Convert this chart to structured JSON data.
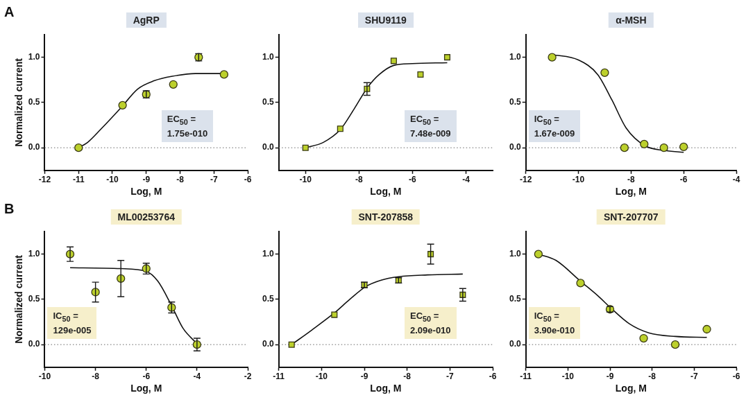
{
  "chart_data": [
    {
      "type": "scatter",
      "title": "AgRP",
      "xlabel": "Log, M",
      "ylabel": "Normalized current",
      "xlim": [
        -12,
        -6
      ],
      "xticks": [
        -12,
        -11,
        -10,
        -9,
        -8,
        -7,
        -6
      ],
      "ylim": [
        -0.25,
        1.25
      ],
      "yticks": [
        {
          "value": 0,
          "label": "0.0"
        },
        {
          "value": 0.5,
          "label": "0.5"
        },
        {
          "value": 1,
          "label": "1.0"
        }
      ],
      "grid": false,
      "legend": false,
      "annotations": [
        "A",
        "EC$_{50}$ = 1.75e-010"
      ],
      "ref_lines": [
        {
          "axis": "y",
          "value": 0,
          "color": "#666666",
          "line_style": "dotted"
        }
      ],
      "series": [
        {
          "type": "scatter",
          "color": "#bcd02c",
          "marker": "circle",
          "x": [
            -11,
            -9.7,
            -9,
            -8.2,
            -7.45,
            -6.7
          ],
          "values": [
            0,
            0.47,
            0.59,
            0.7,
            1.0,
            0.81
          ],
          "errors": [
            null,
            null,
            0.04,
            null,
            0.04,
            null
          ]
        },
        {
          "type": "line",
          "color": "#111111",
          "marker": "none",
          "x": [
            -11,
            -10.73,
            -10.33,
            -9.73,
            -9.25,
            -8.77,
            -8.23,
            -7.55,
            -6.7
          ],
          "values": [
            0,
            0.06,
            0.21,
            0.45,
            0.65,
            0.74,
            0.79,
            0.82,
            0.82
          ]
        }
      ]
    },
    {
      "type": "scatter",
      "title": "SHU9119",
      "xlabel": "Log, M",
      "xlim": [
        -11,
        -3
      ],
      "xticks": [
        -10,
        -8,
        -6,
        -4
      ],
      "ylim": [
        -0.25,
        1.25
      ],
      "yticks": [
        {
          "value": 0,
          "label": "0.0"
        },
        {
          "value": 0.5,
          "label": "0.5"
        },
        {
          "value": 1,
          "label": "1.0"
        }
      ],
      "grid": false,
      "legend": false,
      "annotations": [
        "EC$_{50}$ = 7.48e-009"
      ],
      "ref_lines": [
        {
          "axis": "y",
          "value": 0,
          "color": "#666666",
          "line_style": "dotted"
        }
      ],
      "series": [
        {
          "type": "scatter",
          "color": "#bcd02c",
          "marker": "square",
          "x": [
            -10,
            -8.7,
            -7.7,
            -6.7,
            -5.7,
            -4.7
          ],
          "values": [
            0,
            0.21,
            0.65,
            0.96,
            0.81,
            1.0
          ],
          "errors": [
            null,
            null,
            0.07,
            null,
            null,
            null
          ]
        },
        {
          "type": "line",
          "color": "#111111",
          "marker": "none",
          "x": [
            -10,
            -9.33,
            -8.7,
            -8.2,
            -7.67,
            -7.24,
            -6.7,
            -6.0,
            -4.7
          ],
          "values": [
            0,
            0.06,
            0.2,
            0.42,
            0.67,
            0.81,
            0.91,
            0.93,
            0.94
          ]
        }
      ]
    },
    {
      "type": "scatter",
      "title": "α-MSH",
      "xlabel": "Log, M",
      "xlim": [
        -12,
        -4
      ],
      "xticks": [
        -12,
        -10,
        -8,
        -6,
        -4
      ],
      "ylim": [
        -0.25,
        1.25
      ],
      "yticks": [
        {
          "value": 0,
          "label": "0.0"
        },
        {
          "value": 0.5,
          "label": "0.5"
        },
        {
          "value": 1,
          "label": "1.0"
        }
      ],
      "grid": false,
      "legend": false,
      "annotations": [
        "IC$_{50}$ = 1.67e-009"
      ],
      "ref_lines": [
        {
          "axis": "y",
          "value": 0,
          "color": "#666666",
          "line_style": "dotted"
        }
      ],
      "series": [
        {
          "type": "scatter",
          "color": "#bcd02c",
          "marker": "circle",
          "x": [
            -11,
            -9,
            -8.25,
            -7.5,
            -6.75,
            -6
          ],
          "values": [
            1.0,
            0.83,
            0,
            0.04,
            0,
            0.01
          ]
        },
        {
          "type": "line",
          "color": "#111111",
          "marker": "none",
          "x": [
            -11,
            -10,
            -9.27,
            -8.73,
            -8.19,
            -7.46,
            -6.74,
            -6
          ],
          "values": [
            1.03,
            0.97,
            0.81,
            0.53,
            0.22,
            0.02,
            -0.03,
            -0.05
          ]
        }
      ]
    },
    {
      "type": "scatter",
      "title": "ML00253764",
      "xlabel": "Log, M",
      "ylabel": "Normalized current",
      "xlim": [
        -10,
        -2
      ],
      "xticks": [
        -10,
        -8,
        -6,
        -4,
        -2
      ],
      "ylim": [
        -0.25,
        1.25
      ],
      "yticks": [
        {
          "value": 0,
          "label": "0.0"
        },
        {
          "value": 0.5,
          "label": "0.5"
        },
        {
          "value": 1,
          "label": "1.0"
        }
      ],
      "grid": false,
      "legend": false,
      "annotations": [
        "B",
        "IC$_{50}$ = 129e-005"
      ],
      "ref_lines": [
        {
          "axis": "y",
          "value": 0,
          "color": "#666666",
          "line_style": "dotted"
        }
      ],
      "series": [
        {
          "type": "scatter",
          "color": "#bcd02c",
          "marker": "circle",
          "x": [
            -9,
            -8,
            -7,
            -6,
            -5,
            -4
          ],
          "values": [
            1.0,
            0.58,
            0.73,
            0.84,
            0.41,
            0
          ],
          "errors": [
            0.08,
            0.11,
            0.2,
            0.06,
            0.06,
            0.07
          ]
        },
        {
          "type": "line",
          "color": "#111111",
          "marker": "none",
          "x": [
            -9,
            -7,
            -6,
            -5.54,
            -5,
            -4.55,
            -4
          ],
          "values": [
            0.85,
            0.84,
            0.81,
            0.7,
            0.43,
            0.18,
            0.01
          ]
        }
      ]
    },
    {
      "type": "scatter",
      "title": "SNT-207858",
      "xlabel": "Log, M",
      "xlim": [
        -11,
        -6
      ],
      "xticks": [
        -11,
        -10,
        -9,
        -8,
        -7,
        -6
      ],
      "ylim": [
        -0.25,
        1.25
      ],
      "yticks": [
        {
          "value": 0,
          "label": "0.0"
        },
        {
          "value": 0.5,
          "label": "0.5"
        },
        {
          "value": 1,
          "label": "1.0"
        }
      ],
      "grid": false,
      "legend": false,
      "annotations": [
        "EC$_{50}$ = 2.09e-010"
      ],
      "ref_lines": [
        {
          "axis": "y",
          "value": 0,
          "color": "#666666",
          "line_style": "dotted"
        }
      ],
      "series": [
        {
          "type": "scatter",
          "color": "#bcd02c",
          "marker": "square",
          "x": [
            -10.7,
            -9.7,
            -9,
            -8.2,
            -7.45,
            -6.7
          ],
          "values": [
            0,
            0.33,
            0.66,
            0.71,
            1.0,
            0.55
          ],
          "errors": [
            null,
            null,
            0.03,
            0.03,
            0.11,
            0.07
          ]
        },
        {
          "type": "line",
          "color": "#111111",
          "marker": "none",
          "x": [
            -10.7,
            -10.23,
            -9.7,
            -9.34,
            -8.97,
            -8.62,
            -8.2,
            -7.52,
            -6.7
          ],
          "values": [
            0,
            0.16,
            0.35,
            0.5,
            0.64,
            0.71,
            0.75,
            0.77,
            0.78
          ]
        }
      ]
    },
    {
      "type": "scatter",
      "title": "SNT-207707",
      "xlabel": "Log, M",
      "xlim": [
        -11,
        -6
      ],
      "xticks": [
        -11,
        -10,
        -9,
        -8,
        -7,
        -6
      ],
      "ylim": [
        -0.25,
        1.25
      ],
      "yticks": [
        {
          "value": 0,
          "label": "0.0"
        },
        {
          "value": 0.5,
          "label": "0.5"
        },
        {
          "value": 1,
          "label": "1.0"
        }
      ],
      "grid": false,
      "legend": false,
      "annotations": [
        "IC$_{50}$ = 3.90e-010"
      ],
      "ref_lines": [
        {
          "axis": "y",
          "value": 0,
          "color": "#666666",
          "line_style": "dotted"
        }
      ],
      "series": [
        {
          "type": "scatter",
          "color": "#bcd02c",
          "marker": "circle",
          "x": [
            -10.7,
            -9.7,
            -9,
            -8.2,
            -7.45,
            -6.7
          ],
          "values": [
            1.0,
            0.68,
            0.39,
            0.07,
            0,
            0.17
          ],
          "errors": [
            null,
            null,
            0.03,
            null,
            null,
            null
          ]
        },
        {
          "type": "line",
          "color": "#111111",
          "marker": "none",
          "x": [
            -10.7,
            -10.28,
            -9.7,
            -9.29,
            -8.97,
            -8.54,
            -8.08,
            -7.45,
            -6.7
          ],
          "values": [
            1.0,
            0.93,
            0.7,
            0.54,
            0.4,
            0.23,
            0.13,
            0.09,
            0.08
          ]
        }
      ]
    }
  ]
}
